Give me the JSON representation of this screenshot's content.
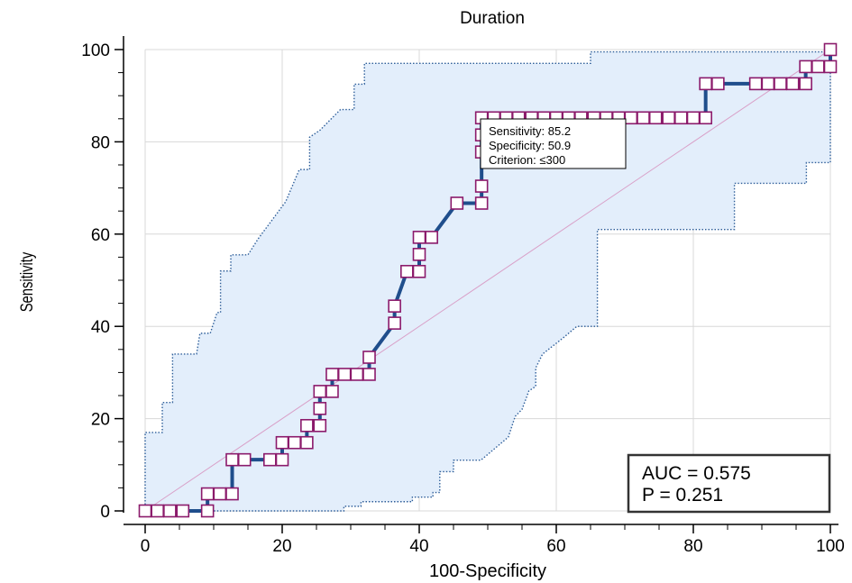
{
  "chart_data": {
    "type": "line",
    "title": "Duration",
    "xlabel": "100-Specificity",
    "ylabel": "Sensitivity",
    "xlim": [
      0,
      100
    ],
    "ylim": [
      0,
      100
    ],
    "x_ticks": [
      0,
      20,
      40,
      60,
      80,
      100
    ],
    "y_ticks": [
      0,
      20,
      40,
      60,
      80,
      100
    ],
    "x_tick_labels": [
      "0",
      "20",
      "40",
      "60",
      "80",
      "100"
    ],
    "y_tick_labels": [
      "0",
      "20",
      "40",
      "60",
      "80",
      "100"
    ],
    "grid": true,
    "colors": {
      "roc_line": "#1f4e8c",
      "marker_edge": "#8b1a6b",
      "ci_fill": "#e3eefb",
      "ci_edge": "#2f5f9a",
      "diagonal": "#d9a0c8",
      "grid": "#d8d8d8"
    },
    "series": [
      {
        "type": "roc",
        "points": [
          [
            0,
            0
          ],
          [
            1.8,
            0
          ],
          [
            3.6,
            0
          ],
          [
            5.5,
            0
          ],
          [
            9.1,
            0
          ],
          [
            9.1,
            3.7
          ],
          [
            10.9,
            3.7
          ],
          [
            12.7,
            3.7
          ],
          [
            12.7,
            11.1
          ],
          [
            14.5,
            11.1
          ],
          [
            18.2,
            11.1
          ],
          [
            20,
            11.1
          ],
          [
            20,
            14.8
          ],
          [
            21.8,
            14.8
          ],
          [
            23.6,
            14.8
          ],
          [
            23.6,
            18.5
          ],
          [
            25.5,
            18.5
          ],
          [
            25.5,
            22.2
          ],
          [
            25.5,
            25.9
          ],
          [
            27.3,
            25.9
          ],
          [
            27.3,
            29.6
          ],
          [
            29.1,
            29.6
          ],
          [
            30.9,
            29.6
          ],
          [
            32.7,
            29.6
          ],
          [
            32.7,
            33.3
          ],
          [
            36.4,
            40.7
          ],
          [
            36.4,
            44.4
          ],
          [
            38.2,
            51.9
          ],
          [
            40,
            51.9
          ],
          [
            40,
            55.6
          ],
          [
            40,
            59.3
          ],
          [
            41.8,
            59.3
          ],
          [
            45.5,
            66.7
          ],
          [
            49.1,
            66.7
          ],
          [
            49.1,
            70.4
          ],
          [
            49.1,
            77.8
          ],
          [
            49.1,
            81.5
          ],
          [
            49.1,
            85.2
          ],
          [
            50.9,
            85.2
          ],
          [
            52.7,
            85.2
          ],
          [
            54.5,
            85.2
          ],
          [
            56.4,
            85.2
          ],
          [
            58.2,
            85.2
          ],
          [
            60,
            85.2
          ],
          [
            61.8,
            85.2
          ],
          [
            63.6,
            85.2
          ],
          [
            65.5,
            85.2
          ],
          [
            67.3,
            85.2
          ],
          [
            69.1,
            85.2
          ],
          [
            70.9,
            85.2
          ],
          [
            72.7,
            85.2
          ],
          [
            74.5,
            85.2
          ],
          [
            76.4,
            85.2
          ],
          [
            78.2,
            85.2
          ],
          [
            80,
            85.2
          ],
          [
            81.8,
            85.2
          ],
          [
            81.8,
            92.6
          ],
          [
            83.6,
            92.6
          ],
          [
            89.1,
            92.6
          ],
          [
            90.9,
            92.6
          ],
          [
            92.7,
            92.6
          ],
          [
            94.5,
            92.6
          ],
          [
            96.4,
            92.6
          ],
          [
            96.4,
            96.3
          ],
          [
            98.2,
            96.3
          ],
          [
            100,
            96.3
          ],
          [
            100,
            100
          ]
        ]
      }
    ],
    "ci_upper": [
      [
        0,
        0
      ],
      [
        0,
        17
      ],
      [
        2.5,
        17
      ],
      [
        2.5,
        23.5
      ],
      [
        4,
        23.5
      ],
      [
        4,
        34
      ],
      [
        7.5,
        34
      ],
      [
        8,
        38.5
      ],
      [
        9.5,
        38.5
      ],
      [
        10.5,
        43
      ],
      [
        11,
        43
      ],
      [
        11,
        52
      ],
      [
        12.5,
        52
      ],
      [
        12.5,
        55.5
      ],
      [
        15,
        55.5
      ],
      [
        16.5,
        59
      ],
      [
        18.5,
        63
      ],
      [
        20.5,
        67
      ],
      [
        21.5,
        70.5
      ],
      [
        22.5,
        74
      ],
      [
        24,
        74
      ],
      [
        24,
        81
      ],
      [
        25.5,
        82.5
      ],
      [
        28.5,
        87
      ],
      [
        30.5,
        87
      ],
      [
        30.5,
        92.5
      ],
      [
        32,
        92.5
      ],
      [
        32,
        97
      ],
      [
        51,
        97
      ],
      [
        58,
        97
      ],
      [
        65,
        97
      ],
      [
        65,
        99.5
      ],
      [
        100,
        99.5
      ],
      [
        100,
        100
      ]
    ],
    "ci_lower": [
      [
        0,
        0
      ],
      [
        29,
        0
      ],
      [
        29,
        1
      ],
      [
        31.5,
        1
      ],
      [
        31.5,
        2
      ],
      [
        39,
        2
      ],
      [
        39,
        3
      ],
      [
        42,
        3
      ],
      [
        42,
        4
      ],
      [
        43,
        4
      ],
      [
        43,
        8.5
      ],
      [
        45,
        8.5
      ],
      [
        45,
        11
      ],
      [
        49,
        11
      ],
      [
        51,
        13.5
      ],
      [
        53,
        16
      ],
      [
        54,
        20.5
      ],
      [
        55,
        22
      ],
      [
        56,
        26
      ],
      [
        57,
        27
      ],
      [
        57,
        31
      ],
      [
        58,
        34
      ],
      [
        61,
        37.5
      ],
      [
        63,
        40
      ],
      [
        66,
        40
      ],
      [
        66,
        61
      ],
      [
        86,
        61
      ],
      [
        86,
        71
      ],
      [
        96.5,
        71
      ],
      [
        96.5,
        75.5
      ],
      [
        100,
        75.5
      ],
      [
        100,
        100
      ]
    ],
    "diagonal": [
      [
        0,
        0
      ],
      [
        100,
        100
      ]
    ],
    "tooltip": {
      "lines": [
        "Sensitivity: 85.2",
        "Specificity: 50.9",
        "Criterion: ≤300"
      ]
    },
    "stats": {
      "auc": "AUC = 0.575",
      "p": "P = 0.251"
    }
  }
}
